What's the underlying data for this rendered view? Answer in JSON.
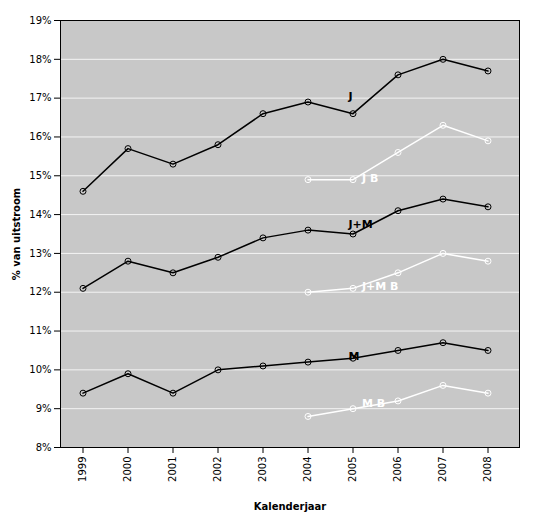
{
  "chart_data": {
    "type": "line",
    "x_label": "Kalenderjaar",
    "y_label": "% van uitstroom",
    "x": [
      1999,
      2000,
      2001,
      2002,
      2003,
      2004,
      2005,
      2006,
      2007,
      2008
    ],
    "series": [
      {
        "name": "J",
        "color": "#000000",
        "values": [
          14.6,
          15.7,
          15.3,
          15.8,
          16.6,
          16.9,
          16.6,
          17.6,
          18.0,
          17.7
        ],
        "label_x": 2004.9,
        "label_y": 16.95
      },
      {
        "name": "J+M",
        "color": "#000000",
        "values": [
          12.1,
          12.8,
          12.5,
          12.9,
          13.4,
          13.6,
          13.5,
          14.1,
          14.4,
          14.2
        ],
        "label_x": 2004.9,
        "label_y": 13.65
      },
      {
        "name": "M",
        "color": "#000000",
        "values": [
          9.4,
          9.9,
          9.4,
          10.0,
          10.1,
          10.2,
          10.3,
          10.5,
          10.7,
          10.5
        ],
        "label_x": 2004.9,
        "label_y": 10.25
      },
      {
        "name": "J B",
        "color": "#ffffff",
        "values": [
          null,
          null,
          null,
          null,
          null,
          14.9,
          14.9,
          15.6,
          16.3,
          15.9
        ],
        "label_x": 2005.2,
        "label_y": 14.85
      },
      {
        "name": "J+M B",
        "color": "#ffffff",
        "values": [
          null,
          null,
          null,
          null,
          null,
          12.0,
          12.1,
          12.5,
          13.0,
          12.8
        ],
        "label_x": 2005.2,
        "label_y": 12.05
      },
      {
        "name": "M B",
        "color": "#ffffff",
        "values": [
          null,
          null,
          null,
          null,
          null,
          8.8,
          9.0,
          9.2,
          9.6,
          9.4
        ],
        "label_x": 2005.2,
        "label_y": 9.05
      }
    ],
    "xlim": [
      1998.5,
      2008.7
    ],
    "xticks": [
      1999,
      2000,
      2001,
      2002,
      2003,
      2004,
      2005,
      2006,
      2007,
      2008
    ],
    "ylim": [
      8,
      19
    ],
    "yticks": [
      {
        "value": 8,
        "label": "8%"
      },
      {
        "value": 9,
        "label": "9%"
      },
      {
        "value": 10,
        "label": "10%"
      },
      {
        "value": 11,
        "label": "11%"
      },
      {
        "value": 12,
        "label": "12%"
      },
      {
        "value": 13,
        "label": "13%"
      },
      {
        "value": 14,
        "label": "14%"
      },
      {
        "value": 15,
        "label": "15%"
      },
      {
        "value": 16,
        "label": "16%"
      },
      {
        "value": 17,
        "label": "17%"
      },
      {
        "value": 18,
        "label": "18%"
      },
      {
        "value": 19,
        "label": "19%"
      }
    ],
    "grid": "y",
    "marker": "circle"
  }
}
